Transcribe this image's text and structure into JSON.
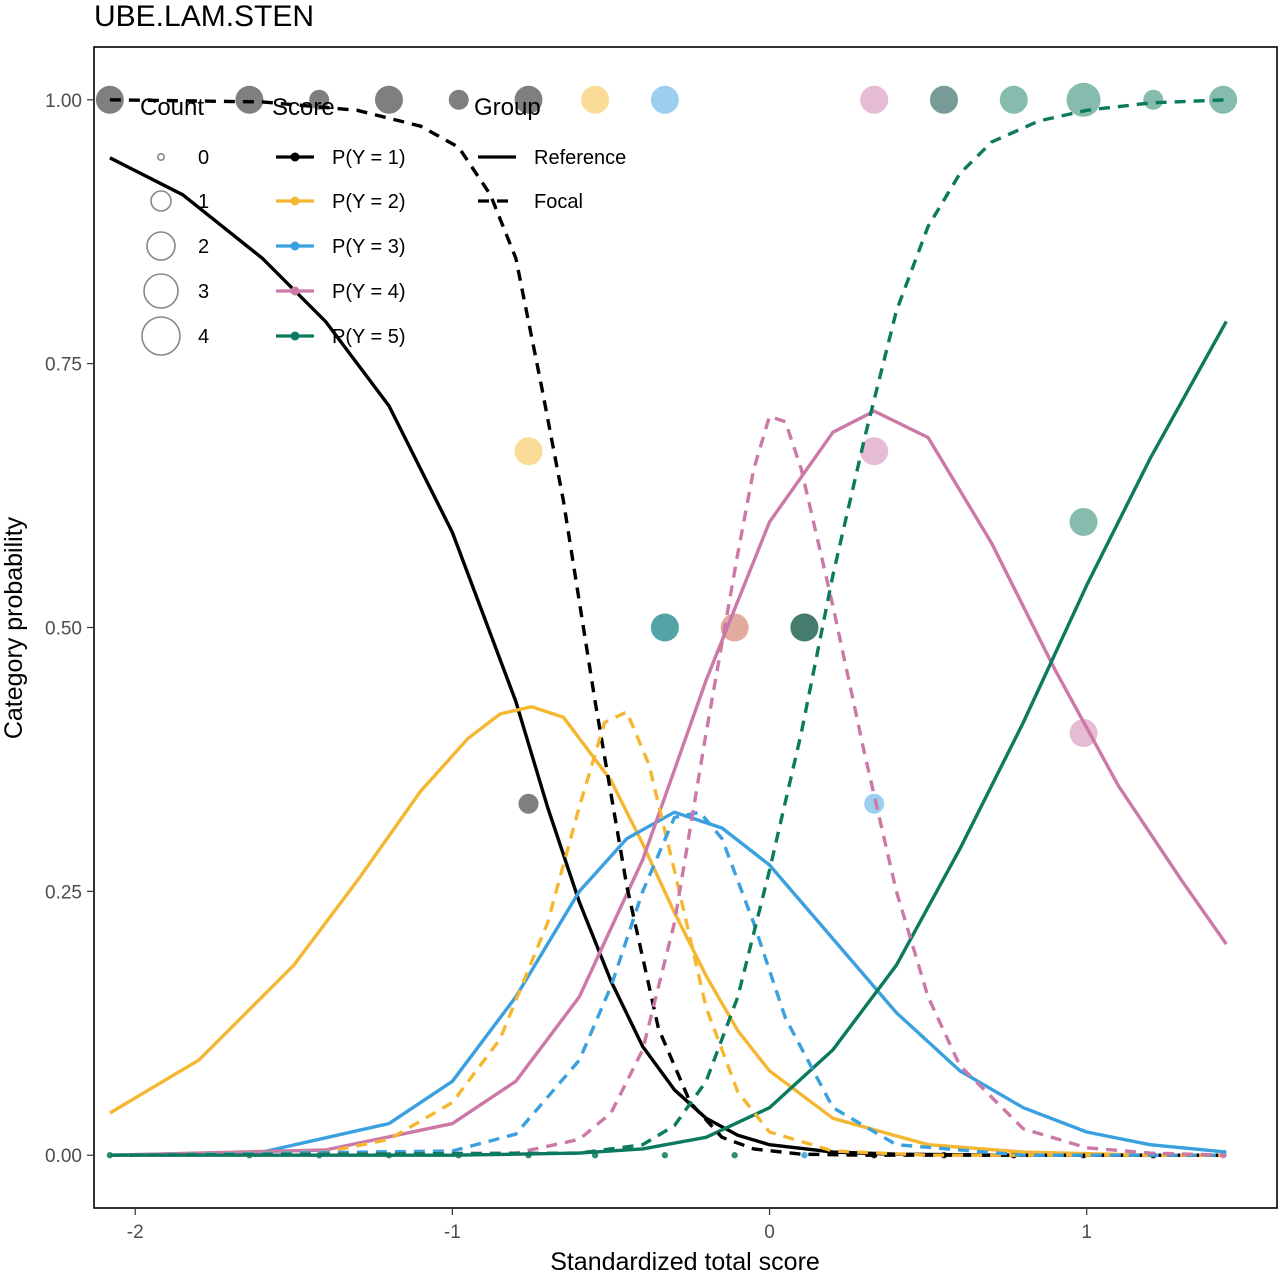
{
  "chart_data": {
    "type": "line",
    "title": "UBE.LAM.STEN",
    "xlabel": "Standardized total score",
    "ylabel": "Category probability",
    "xlim": [
      -2.13,
      1.6
    ],
    "ylim": [
      -0.05,
      1.05
    ],
    "x_ticks": [
      -2,
      -1,
      0,
      1
    ],
    "x_tick_labels": [
      "-2",
      "-1",
      "0",
      "1"
    ],
    "y_ticks": [
      0,
      0.25,
      0.5,
      0.75,
      1
    ],
    "y_tick_labels": [
      "0.00",
      "0.25",
      "0.50",
      "0.75",
      "1.00"
    ],
    "grid": false,
    "legend_placement": "top-left inside",
    "colors": {
      "P(Y = 1)": "#000000",
      "P(Y = 2)": "#F5B731",
      "P(Y = 3)": "#3AA0DF",
      "P(Y = 4)": "#CC79A7",
      "P(Y = 5)": "#0B7A5E"
    },
    "legends": {
      "count": {
        "title": "Count",
        "items": [
          "0",
          "1",
          "2",
          "3",
          "4"
        ]
      },
      "score": {
        "title": "Score",
        "items": [
          "P(Y = 1)",
          "P(Y = 2)",
          "P(Y = 3)",
          "P(Y = 4)",
          "P(Y = 5)"
        ]
      },
      "group": {
        "title": "Group",
        "items": [
          "Reference",
          "Focal"
        ]
      }
    },
    "series": [
      {
        "name": "P(Y = 1)",
        "group": "Reference",
        "color": "#000000",
        "x": [
          -2.08,
          -1.85,
          -1.6,
          -1.4,
          -1.2,
          -1.0,
          -0.9,
          -0.8,
          -0.7,
          -0.6,
          -0.5,
          -0.4,
          -0.3,
          -0.2,
          -0.1,
          0.0,
          0.2,
          0.4,
          0.8,
          1.2,
          1.44
        ],
        "y": [
          0.945,
          0.91,
          0.85,
          0.79,
          0.71,
          0.59,
          0.51,
          0.43,
          0.33,
          0.24,
          0.165,
          0.103,
          0.062,
          0.035,
          0.019,
          0.01,
          0.003,
          0.001,
          0.0,
          0.0,
          0.0
        ]
      },
      {
        "name": "P(Y = 2)",
        "group": "Reference",
        "color": "#F5B731",
        "x": [
          -2.08,
          -1.8,
          -1.5,
          -1.3,
          -1.1,
          -0.95,
          -0.85,
          -0.75,
          -0.65,
          -0.5,
          -0.4,
          -0.3,
          -0.2,
          -0.1,
          0.0,
          0.2,
          0.5,
          0.8,
          1.2,
          1.44
        ],
        "y": [
          0.04,
          0.09,
          0.18,
          0.26,
          0.345,
          0.395,
          0.418,
          0.425,
          0.415,
          0.355,
          0.295,
          0.23,
          0.17,
          0.118,
          0.08,
          0.035,
          0.01,
          0.003,
          0.0,
          0.0
        ]
      },
      {
        "name": "P(Y = 3)",
        "group": "Reference",
        "color": "#3AA0DF",
        "x": [
          -2.08,
          -1.6,
          -1.2,
          -1.0,
          -0.8,
          -0.6,
          -0.45,
          -0.3,
          -0.15,
          0.0,
          0.2,
          0.4,
          0.6,
          0.8,
          1.0,
          1.2,
          1.44
        ],
        "y": [
          0.0,
          0.003,
          0.03,
          0.07,
          0.15,
          0.25,
          0.3,
          0.325,
          0.31,
          0.275,
          0.205,
          0.135,
          0.08,
          0.045,
          0.022,
          0.01,
          0.003
        ]
      },
      {
        "name": "P(Y = 4)",
        "group": "Reference",
        "color": "#CC79A7",
        "x": [
          -2.08,
          -1.4,
          -1.0,
          -0.8,
          -0.6,
          -0.4,
          -0.2,
          0.0,
          0.2,
          0.33,
          0.5,
          0.7,
          0.9,
          1.1,
          1.3,
          1.44
        ],
        "y": [
          0.0,
          0.005,
          0.03,
          0.07,
          0.15,
          0.28,
          0.45,
          0.6,
          0.685,
          0.705,
          0.68,
          0.58,
          0.46,
          0.35,
          0.26,
          0.2
        ]
      },
      {
        "name": "P(Y = 5)",
        "group": "Reference",
        "color": "#0B7A5E",
        "x": [
          -2.08,
          -1.0,
          -0.6,
          -0.4,
          -0.2,
          0.0,
          0.2,
          0.4,
          0.6,
          0.8,
          1.0,
          1.2,
          1.44
        ],
        "y": [
          0.0,
          0.0,
          0.002,
          0.006,
          0.017,
          0.045,
          0.1,
          0.18,
          0.29,
          0.41,
          0.54,
          0.66,
          0.79
        ]
      },
      {
        "name": "P(Y = 1)",
        "group": "Focal",
        "color": "#000000",
        "x": [
          -2.08,
          -1.6,
          -1.3,
          -1.1,
          -0.98,
          -0.88,
          -0.8,
          -0.72,
          -0.65,
          -0.55,
          -0.45,
          -0.35,
          -0.25,
          -0.15,
          -0.05,
          0.1,
          0.3,
          0.6,
          1.0,
          1.44
        ],
        "y": [
          1.0,
          0.998,
          0.99,
          0.975,
          0.955,
          0.91,
          0.85,
          0.73,
          0.62,
          0.43,
          0.255,
          0.12,
          0.05,
          0.017,
          0.006,
          0.001,
          0.0,
          0.0,
          0.0,
          0.0
        ]
      },
      {
        "name": "P(Y = 2)",
        "group": "Focal",
        "color": "#F5B731",
        "x": [
          -2.08,
          -1.4,
          -1.2,
          -1.0,
          -0.85,
          -0.7,
          -0.6,
          -0.52,
          -0.45,
          -0.38,
          -0.3,
          -0.2,
          -0.1,
          0.0,
          0.2,
          0.5,
          1.0,
          1.44
        ],
        "y": [
          0.0,
          0.003,
          0.015,
          0.05,
          0.11,
          0.22,
          0.33,
          0.41,
          0.42,
          0.37,
          0.27,
          0.14,
          0.06,
          0.022,
          0.004,
          0.0,
          0.0,
          0.0
        ]
      },
      {
        "name": "P(Y = 3)",
        "group": "Focal",
        "color": "#3AA0DF",
        "x": [
          -2.08,
          -1.0,
          -0.8,
          -0.6,
          -0.5,
          -0.4,
          -0.3,
          -0.22,
          -0.15,
          -0.05,
          0.05,
          0.2,
          0.4,
          0.8,
          1.44
        ],
        "y": [
          0.0,
          0.004,
          0.02,
          0.09,
          0.16,
          0.25,
          0.32,
          0.325,
          0.3,
          0.22,
          0.13,
          0.045,
          0.01,
          0.0,
          0.0
        ]
      },
      {
        "name": "P(Y = 4)",
        "group": "Focal",
        "color": "#CC79A7",
        "x": [
          -2.08,
          -0.8,
          -0.6,
          -0.5,
          -0.4,
          -0.3,
          -0.2,
          -0.1,
          -0.05,
          0.0,
          0.05,
          0.1,
          0.2,
          0.3,
          0.4,
          0.5,
          0.6,
          0.8,
          1.0,
          1.2,
          1.44
        ],
        "y": [
          0.0,
          0.002,
          0.015,
          0.04,
          0.1,
          0.22,
          0.4,
          0.57,
          0.65,
          0.7,
          0.695,
          0.65,
          0.52,
          0.38,
          0.25,
          0.15,
          0.085,
          0.025,
          0.007,
          0.002,
          0.0
        ]
      },
      {
        "name": "P(Y = 5)",
        "group": "Focal",
        "color": "#0B7A5E",
        "x": [
          -2.08,
          -0.6,
          -0.4,
          -0.3,
          -0.2,
          -0.1,
          0.0,
          0.1,
          0.2,
          0.3,
          0.4,
          0.5,
          0.6,
          0.7,
          0.85,
          1.0,
          1.2,
          1.44
        ],
        "y": [
          0.0,
          0.002,
          0.01,
          0.028,
          0.07,
          0.15,
          0.27,
          0.4,
          0.55,
          0.68,
          0.8,
          0.88,
          0.93,
          0.96,
          0.98,
          0.99,
          0.997,
          1.0
        ]
      }
    ],
    "points": [
      {
        "x": -2.08,
        "y": 1.0,
        "score": "P(Y = 1)",
        "count": 2,
        "color": "#000000"
      },
      {
        "x": -1.64,
        "y": 1.0,
        "score": "P(Y = 1)",
        "count": 2,
        "color": "#000000"
      },
      {
        "x": -1.42,
        "y": 1.0,
        "score": "P(Y = 1)",
        "count": 1,
        "color": "#000000"
      },
      {
        "x": -1.2,
        "y": 1.0,
        "score": "P(Y = 1)",
        "count": 2,
        "color": "#000000"
      },
      {
        "x": -0.98,
        "y": 1.0,
        "score": "P(Y = 1)",
        "count": 1,
        "color": "#000000"
      },
      {
        "x": -0.76,
        "y": 1.0,
        "score": "P(Y = 1)",
        "count": 2,
        "color": "#000000"
      },
      {
        "x": -0.55,
        "y": 1.0,
        "score": "P(Y = 2)",
        "count": 2,
        "color": "#F5B731"
      },
      {
        "x": -0.33,
        "y": 1.0,
        "score": "P(Y = 3)",
        "count": 2,
        "color": "#3AA0DF"
      },
      {
        "x": 0.33,
        "y": 1.0,
        "score": "P(Y = 4)",
        "count": 2,
        "color": "#CC79A7"
      },
      {
        "x": 0.55,
        "y": 1.0,
        "score": "P(Y = 4)",
        "count": 2,
        "color": "#CC79A7"
      },
      {
        "x": 0.55,
        "y": 1.0,
        "score": "P(Y = 5)",
        "count": 2,
        "color": "#0B7A5E"
      },
      {
        "x": 0.77,
        "y": 1.0,
        "score": "P(Y = 5)",
        "count": 2,
        "color": "#0B7A5E"
      },
      {
        "x": 0.99,
        "y": 1.0,
        "score": "P(Y = 5)",
        "count": 3,
        "color": "#0B7A5E"
      },
      {
        "x": 1.21,
        "y": 1.0,
        "score": "P(Y = 5)",
        "count": 1,
        "color": "#0B7A5E"
      },
      {
        "x": 1.43,
        "y": 1.0,
        "score": "P(Y = 5)",
        "count": 2,
        "color": "#0B7A5E"
      },
      {
        "x": -0.76,
        "y": 0.667,
        "score": "P(Y = 2)",
        "count": 2,
        "color": "#F5B731"
      },
      {
        "x": -0.76,
        "y": 0.333,
        "score": "P(Y = 1)",
        "count": 1,
        "color": "#000000"
      },
      {
        "x": -0.33,
        "y": 0.5,
        "score": "P(Y = 3)",
        "count": 2,
        "color": "#3AA0DF"
      },
      {
        "x": -0.33,
        "y": 0.5,
        "score": "P(Y = 5)",
        "count": 2,
        "color": "#0B7A5E"
      },
      {
        "x": -0.11,
        "y": 0.5,
        "score": "P(Y = 2)",
        "count": 2,
        "color": "#F5B731"
      },
      {
        "x": -0.11,
        "y": 0.5,
        "score": "P(Y = 4)",
        "count": 2,
        "color": "#CC79A7"
      },
      {
        "x": 0.11,
        "y": 0.5,
        "score": "P(Y = 1)",
        "count": 2,
        "color": "#000000"
      },
      {
        "x": 0.11,
        "y": 0.5,
        "score": "P(Y = 5)",
        "count": 2,
        "color": "#0B7A5E"
      },
      {
        "x": 0.33,
        "y": 0.667,
        "score": "P(Y = 4)",
        "count": 2,
        "color": "#CC79A7"
      },
      {
        "x": 0.33,
        "y": 0.333,
        "score": "P(Y = 3)",
        "count": 1,
        "color": "#3AA0DF"
      },
      {
        "x": 0.99,
        "y": 0.6,
        "score": "P(Y = 5)",
        "count": 2,
        "color": "#0B7A5E"
      },
      {
        "x": 0.99,
        "y": 0.4,
        "score": "P(Y = 4)",
        "count": 2,
        "color": "#CC79A7"
      },
      {
        "x": -2.08,
        "y": 0.0,
        "score": "P(Y = 5)",
        "count": 0,
        "color": "#0B7A5E"
      },
      {
        "x": -1.64,
        "y": 0.0,
        "score": "P(Y = 5)",
        "count": 0,
        "color": "#0B7A5E"
      },
      {
        "x": -1.42,
        "y": 0.0,
        "score": "P(Y = 5)",
        "count": 0,
        "color": "#0B7A5E"
      },
      {
        "x": -1.2,
        "y": 0.0,
        "score": "P(Y = 5)",
        "count": 0,
        "color": "#0B7A5E"
      },
      {
        "x": -0.98,
        "y": 0.0,
        "score": "P(Y = 5)",
        "count": 0,
        "color": "#0B7A5E"
      },
      {
        "x": -0.76,
        "y": 0.0,
        "score": "P(Y = 5)",
        "count": 0,
        "color": "#0B7A5E"
      },
      {
        "x": -0.55,
        "y": 0.0,
        "score": "P(Y = 5)",
        "count": 0,
        "color": "#0B7A5E"
      },
      {
        "x": -0.33,
        "y": 0.0,
        "score": "P(Y = 5)",
        "count": 0,
        "color": "#0B7A5E"
      },
      {
        "x": -0.11,
        "y": 0.0,
        "score": "P(Y = 5)",
        "count": 0,
        "color": "#0B7A5E"
      },
      {
        "x": 0.11,
        "y": 0.0,
        "score": "P(Y = 3)",
        "count": 0,
        "color": "#3AA0DF"
      },
      {
        "x": 0.33,
        "y": 0.0,
        "score": "P(Y = 1)",
        "count": 0,
        "color": "#000000"
      },
      {
        "x": 0.55,
        "y": 0.0,
        "score": "P(Y = 1)",
        "count": 0,
        "color": "#000000"
      },
      {
        "x": 0.77,
        "y": 0.0,
        "score": "P(Y = 1)",
        "count": 0,
        "color": "#000000"
      },
      {
        "x": 0.99,
        "y": 0.0,
        "score": "P(Y = 1)",
        "count": 0,
        "color": "#000000"
      },
      {
        "x": 1.21,
        "y": 0.0,
        "score": "P(Y = 1)",
        "count": 0,
        "color": "#000000"
      },
      {
        "x": 1.43,
        "y": 0.0,
        "score": "P(Y = 4)",
        "count": 0,
        "color": "#CC79A7"
      }
    ]
  }
}
